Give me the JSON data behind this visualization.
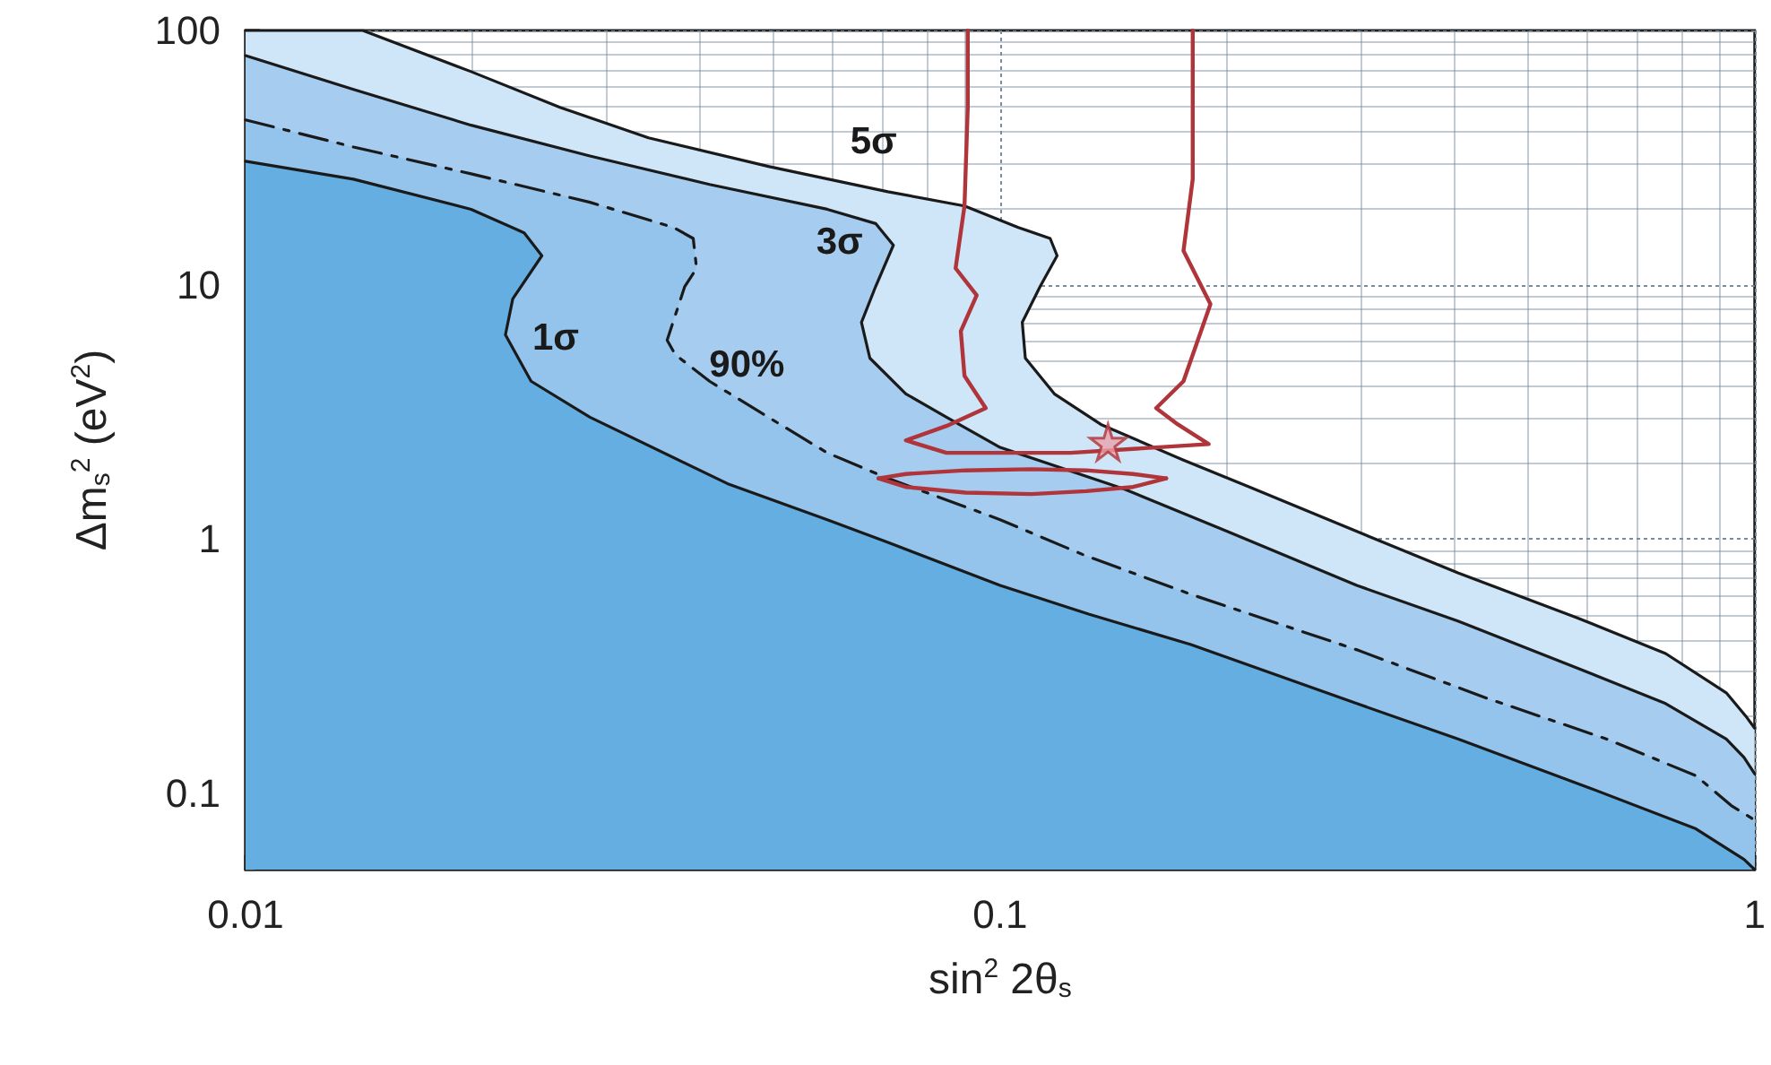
{
  "chart_data": {
    "type": "line",
    "xlabel": "sin$^{2}$ 2θ$_{s}$",
    "ylabel": "Δm$_{s}$$^{2}$ (eV$^{2}$)",
    "log": "xy",
    "xlim": [
      0.01,
      1
    ],
    "ylim": [
      0.05,
      100
    ],
    "xticks": [
      0.01,
      0.1,
      1
    ],
    "yticks": [
      0.1,
      1,
      10,
      100
    ],
    "grid": true,
    "marker": "none",
    "series": [
      {
        "type": "area",
        "name": "5σ",
        "color": "#cfe5f8",
        "line_style": "solid",
        "x": [
          0.01,
          0.0143,
          0.0199,
          0.0261,
          0.0342,
          0.0493,
          0.071,
          0.0897,
          0.1057,
          0.1165,
          0.119,
          0.113,
          0.107,
          0.108,
          0.118,
          0.136,
          0.175,
          0.214,
          0.297,
          0.405,
          0.581,
          0.762,
          0.917,
          0.973,
          1
        ],
        "values": [
          100,
          100,
          68.9,
          49.8,
          37.8,
          29.2,
          23.2,
          20.4,
          16.8,
          15.2,
          13.0,
          9.84,
          7.11,
          5.14,
          3.72,
          2.82,
          2.04,
          1.6,
          1.07,
          0.734,
          0.49,
          0.354,
          0.248,
          0.201,
          0.18
        ]
      },
      {
        "type": "area",
        "name": "3σ",
        "color": "#a6cdef",
        "line_style": "solid",
        "x": [
          0.01,
          0.0139,
          0.0199,
          0.0286,
          0.0412,
          0.059,
          0.0684,
          0.0722,
          0.0684,
          0.0655,
          0.0672,
          0.075,
          0.0849,
          0.1,
          0.146,
          0.2,
          0.297,
          0.405,
          0.581,
          0.762,
          0.917,
          0.968,
          1
        ],
        "values": [
          79.6,
          58.6,
          42.4,
          32.1,
          24.8,
          19.8,
          17.4,
          14.3,
          9.84,
          7.11,
          5.14,
          3.72,
          3.01,
          2.29,
          1.57,
          1.07,
          0.656,
          0.474,
          0.311,
          0.225,
          0.163,
          0.138,
          0.119
        ]
      },
      {
        "type": "area",
        "name": "90%",
        "color": "#94c4ec",
        "line_style": "dashed",
        "x": [
          0.01,
          0.0139,
          0.0199,
          0.0286,
          0.0369,
          0.0392,
          0.0396,
          0.0382,
          0.0362,
          0.0371,
          0.0412,
          0.0493,
          0.059,
          0.071,
          0.1,
          0.129,
          0.179,
          0.297,
          0.442,
          0.637,
          0.836,
          0.931,
          1
        ],
        "values": [
          44.5,
          34.8,
          27.3,
          21.1,
          16.8,
          15.2,
          11.6,
          9.84,
          6.05,
          5.31,
          4.17,
          3.01,
          2.18,
          1.73,
          1.19,
          0.865,
          0.605,
          0.366,
          0.236,
          0.163,
          0.117,
          0.0893,
          0.0783
        ]
      },
      {
        "type": "area",
        "name": "1σ",
        "color": "#64aee1",
        "line_style": "solid",
        "x": [
          0.01,
          0.0139,
          0.0199,
          0.0234,
          0.0247,
          0.0226,
          0.0221,
          0.0239,
          0.0286,
          0.0435,
          0.059,
          0.071,
          0.1,
          0.131,
          0.179,
          0.297,
          0.405,
          0.603,
          0.836,
          0.968,
          1
        ],
        "values": [
          30.6,
          26.0,
          19.8,
          16.0,
          13.0,
          8.79,
          6.35,
          4.17,
          3.01,
          1.65,
          1.19,
          0.968,
          0.656,
          0.506,
          0.384,
          0.225,
          0.163,
          0.105,
          0.0723,
          0.0548,
          0.05
        ]
      },
      {
        "color": "#b0353a",
        "line_style": "solid",
        "x": [
          0.0906,
          0.0906,
          0.0897,
          0.0873,
          0.0931,
          0.0887,
          0.0897,
          0.0957,
          0.0849,
          0.075,
          0.0849,
          0.124,
          0.189,
          0.172,
          0.161,
          0.175,
          0.19,
          0.175,
          0.18,
          0.18
        ],
        "values": [
          100,
          49.8,
          20.4,
          11.6,
          9.08,
          6.56,
          4.38,
          3.27,
          2.78,
          2.44,
          2.18,
          2.18,
          2.36,
          2.82,
          3.27,
          4.17,
          8.38,
          13.6,
          26.0,
          100
        ]
      },
      {
        "type": "line",
        "color": "#b0353a",
        "line_style": "solid",
        "x": [
          0.069,
          0.075,
          0.09,
          0.11,
          0.13,
          0.15,
          0.166
        ],
        "values": [
          1.73,
          1.8,
          1.86,
          1.88,
          1.86,
          1.8,
          1.73
        ]
      },
      {
        "type": "line",
        "color": "#b0353a",
        "line_style": "solid",
        "x": [
          0.069,
          0.075,
          0.09,
          0.11,
          0.13,
          0.15,
          0.166
        ],
        "values": [
          1.73,
          1.6,
          1.52,
          1.5,
          1.54,
          1.6,
          1.73
        ]
      },
      {
        "type": "scatter",
        "color": "#e8a3ad",
        "marker": "star",
        "x": [
          0.139
        ],
        "values": [
          2.4
        ]
      }
    ]
  }
}
